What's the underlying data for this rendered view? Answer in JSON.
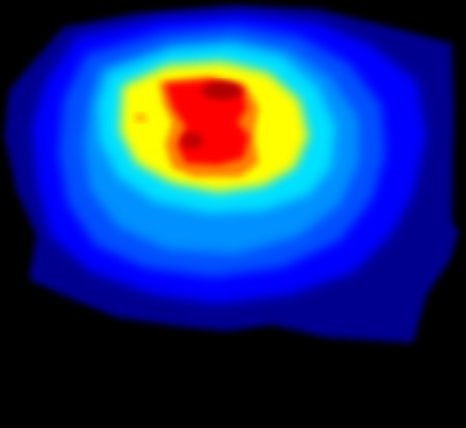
{
  "image": {
    "description_tag": "jet-colormap-intensity-heatmap",
    "colors": {
      "background": "#000000",
      "dark_navy": "#00008f",
      "blue": "#0000ff",
      "mid_blue": "#0050ff",
      "azure": "#0090ff",
      "cyan": "#00e0ff",
      "yellow": "#ffff00",
      "orange": "#ff8000",
      "red": "#ff0000",
      "dark_red": "#b00000"
    }
  }
}
